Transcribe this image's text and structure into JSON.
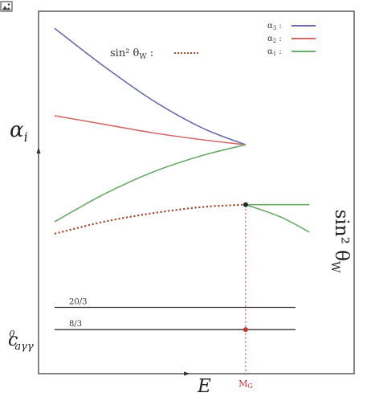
{
  "toolbar": {
    "image_icon": "image-icon"
  },
  "chart_data": {
    "type": "line",
    "title": "",
    "xlabel": "E",
    "ylabel_main": "α",
    "ylabel_main_sub": "i",
    "ylabel_right": "sin² θ",
    "ylabel_right_sub": "W",
    "ylabel_lower": "c",
    "ylabel_lower_sup": "0",
    "ylabel_lower_sub": "aγγ",
    "x_marker_label": "M",
    "x_marker_label_sub": "G",
    "xlim": [
      0,
      1
    ],
    "ylim": [
      0,
      1
    ],
    "grid": false,
    "legend": {
      "placement": "top-right",
      "entries": [
        {
          "label": "α",
          "sub": "3",
          "suffix": " :",
          "color": "#6a6aaa"
        },
        {
          "label": "α",
          "sub": "2",
          "suffix": " :",
          "color": "#d06a6a"
        },
        {
          "label": "α",
          "sub": "1",
          "suffix": " :",
          "color": "#6aaa6a"
        }
      ]
    },
    "sinw_legend": {
      "label": "sin² θ",
      "sub": "W",
      "suffix": " :",
      "color": "#a94830"
    },
    "unification_point": {
      "x": 0.78,
      "y": 0.61
    },
    "series": [
      {
        "name": "α3",
        "color": "#6a6aaa",
        "style": "solid",
        "x": [
          0.0,
          0.2,
          0.4,
          0.6,
          0.78
        ],
        "y": [
          0.95,
          0.84,
          0.74,
          0.66,
          0.61
        ]
      },
      {
        "name": "α2",
        "color": "#d06a6a",
        "style": "solid",
        "x": [
          0.0,
          0.2,
          0.4,
          0.6,
          0.78
        ],
        "y": [
          0.695,
          0.67,
          0.645,
          0.625,
          0.61
        ]
      },
      {
        "name": "α1",
        "color": "#6aaa6a",
        "style": "solid",
        "x": [
          0.0,
          0.2,
          0.4,
          0.6,
          0.78
        ],
        "y": [
          0.385,
          0.465,
          0.53,
          0.578,
          0.61
        ]
      },
      {
        "name": "sin²θW",
        "color": "#a94830",
        "style": "dotted",
        "x": [
          0.0,
          0.2,
          0.4,
          0.6,
          0.78
        ],
        "y": [
          0.35,
          0.385,
          0.41,
          0.428,
          0.435
        ]
      },
      {
        "name": "sin²θW-above-flat",
        "color": "#6aaa6a",
        "style": "solid",
        "x": [
          0.78,
          1.04
        ],
        "y": [
          0.435,
          0.435
        ]
      },
      {
        "name": "sin²θW-above-drop",
        "color": "#6aaa6a",
        "style": "solid",
        "x": [
          0.78,
          0.92,
          1.04
        ],
        "y": [
          0.435,
          0.4,
          0.355
        ]
      }
    ],
    "levels": [
      {
        "label": "20/3",
        "y": 0.135
      },
      {
        "label": "8/3",
        "y": 0.07
      }
    ],
    "level_marker": {
      "x": 0.78,
      "y": 0.07
    }
  }
}
